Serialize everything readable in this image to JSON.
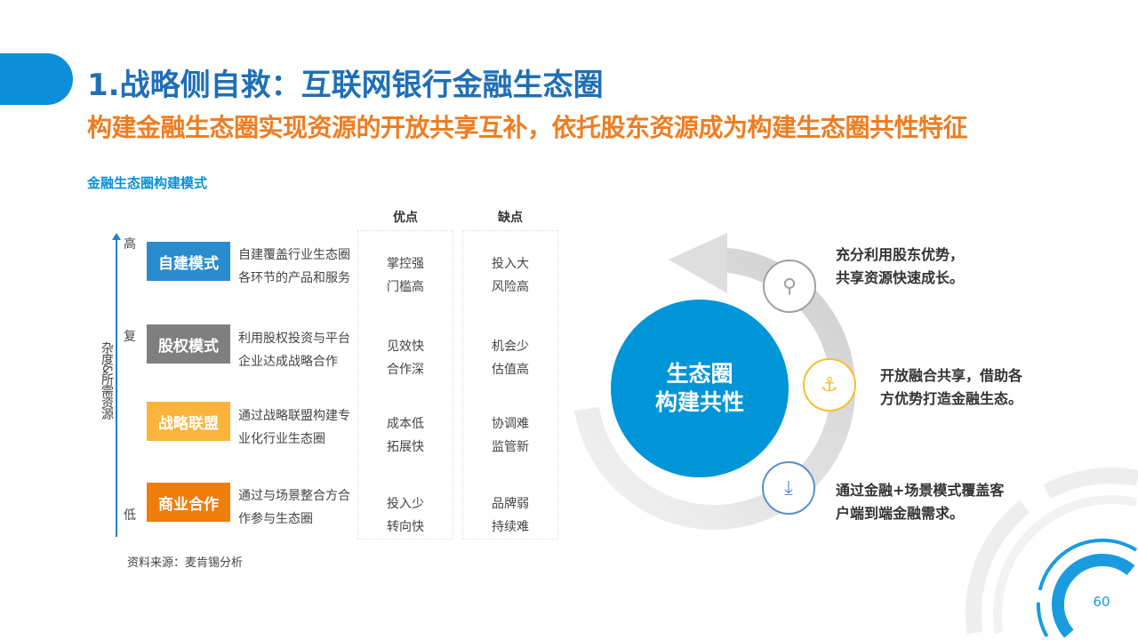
{
  "title": "1.战略侧自救：互联网银行金融生态圈",
  "subtitle": "构建金融生态圈实现资源的开放共享互补，依托股东资源成为构建生态圈共性特征",
  "section_label": "金融生态圈构建模式",
  "axis": {
    "high": "高",
    "mid": "复",
    "low": "低",
    "label": "杂度&所需资源"
  },
  "columns": {
    "pros": "优点",
    "cons": "缺点"
  },
  "models": [
    {
      "name": "自建模式",
      "color": "#2a8ccf",
      "desc": "自建覆盖行业生态圈各环节的产品和服务",
      "pros": [
        "掌控强",
        "门槛高"
      ],
      "cons": [
        "投入大",
        "风险高"
      ]
    },
    {
      "name": "股权模式",
      "color": "#7f7f7f",
      "desc": "利用股权投资与平台企业达成战略合作",
      "pros": [
        "见效快",
        "合作深"
      ],
      "cons": [
        "机会少",
        "估值高"
      ]
    },
    {
      "name": "战略联盟",
      "color": "#fbb33b",
      "desc": "通过战略联盟构建专业化行业生态圈",
      "pros": [
        "成本低",
        "拓展快"
      ],
      "cons": [
        "协调难",
        "监管新"
      ]
    },
    {
      "name": "商业合作",
      "color": "#ee7d0a",
      "desc": "通过与场景整合方合作参与生态圈",
      "pros": [
        "投入少",
        "转向快"
      ],
      "cons": [
        "品牌弱",
        "持续难"
      ]
    }
  ],
  "source": "资料来源：麦肯锡分析",
  "center": {
    "line1": "生态圈",
    "line2": "构建共性"
  },
  "features": [
    {
      "icon": "org-location-icon",
      "color": "#a0a0a0",
      "lines": [
        "充分利用股东优势，",
        "共享资源快速成长。"
      ]
    },
    {
      "icon": "anchor-icon",
      "color": "#f5c02a",
      "lines": [
        "开放融合共享，借助各",
        "方优势打造金融生态。"
      ]
    },
    {
      "icon": "cloud-download-icon",
      "color": "#5b8fd0",
      "lines": [
        "通过金融+场景模式覆盖客",
        "户端到端金融需求。"
      ]
    }
  ],
  "page_number": "60"
}
